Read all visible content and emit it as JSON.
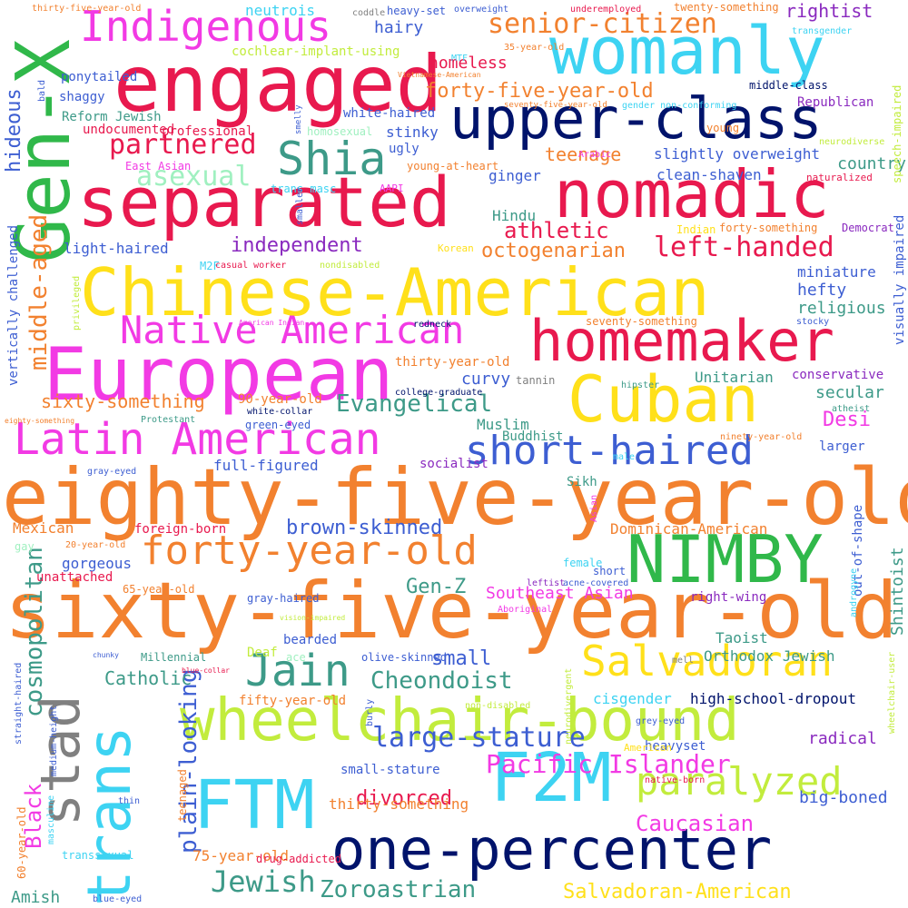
{
  "words": [
    {
      "text": "eighty-five-year-old",
      "color": "#f2812f"
    },
    {
      "text": "sixty-five-year-old",
      "color": "#f2812f"
    },
    {
      "text": "Chinese-American",
      "color": "#ffe01a"
    },
    {
      "text": "wheelchair-bound",
      "color": "#c2ec3d"
    },
    {
      "text": "one-percenter",
      "color": "#00136b"
    },
    {
      "text": "upper-class",
      "color": "#00136b"
    },
    {
      "text": "engaged",
      "color": "#e8194e"
    },
    {
      "text": "separated",
      "color": "#e8194e"
    },
    {
      "text": "nomadic",
      "color": "#e8194e"
    },
    {
      "text": "homemaker",
      "color": "#e8194e"
    },
    {
      "text": "European",
      "color": "#f23ae4"
    },
    {
      "text": "womanly",
      "color": "#3dd3f2"
    },
    {
      "text": "Gen-X",
      "color": "#30b84a"
    },
    {
      "text": "Cuban",
      "color": "#ffe01a"
    },
    {
      "text": "NIMBY",
      "color": "#30b84a"
    },
    {
      "text": "F2M",
      "color": "#3dd3f2"
    },
    {
      "text": "FTM",
      "color": "#3dd3f2"
    },
    {
      "text": "trans",
      "color": "#3dd3f2"
    },
    {
      "text": "stad",
      "color": "#808080"
    },
    {
      "text": "Indigenous",
      "color": "#f23ae4"
    },
    {
      "text": "Latin American",
      "color": "#f23ae4"
    },
    {
      "text": "Native American",
      "color": "#f23ae4"
    },
    {
      "text": "short-haired",
      "color": "#3d5ed2"
    },
    {
      "text": "forty-year-old",
      "color": "#f2812f"
    },
    {
      "text": "Salvadoran",
      "color": "#ffe01a"
    },
    {
      "text": "paralyzed",
      "color": "#c2ec3d"
    },
    {
      "text": "Jain",
      "color": "#3d9a88"
    },
    {
      "text": "Shia",
      "color": "#3d9a88"
    },
    {
      "text": "large-stature",
      "color": "#3d5ed2"
    },
    {
      "text": "partnered",
      "color": "#e8194e"
    },
    {
      "text": "left-handed",
      "color": "#e8194e"
    },
    {
      "text": "asexual",
      "color": "#a0f0c0"
    },
    {
      "text": "senior-citizen",
      "color": "#f2812f"
    },
    {
      "text": "forty-five-year-old",
      "color": "#f2812f"
    },
    {
      "text": "Evangelical",
      "color": "#3d9a88"
    },
    {
      "text": "Pacific Islander",
      "color": "#f23ae4"
    },
    {
      "text": "Cheondoist",
      "color": "#3d9a88"
    },
    {
      "text": "Jewish",
      "color": "#3d9a88"
    },
    {
      "text": "Zoroastrian",
      "color": "#3d9a88"
    },
    {
      "text": "Salvadoran-American",
      "color": "#ffe01a"
    },
    {
      "text": "cosmopolitan",
      "color": "#3d9a88"
    },
    {
      "text": "middle-aged",
      "color": "#f2812f"
    },
    {
      "text": "plain-looking",
      "color": "#3d5ed2"
    },
    {
      "text": "Black",
      "color": "#f23ae4"
    },
    {
      "text": "Caucasian",
      "color": "#f23ae4"
    },
    {
      "text": "divorced",
      "color": "#e8194e"
    },
    {
      "text": "hideous",
      "color": "#3d5ed2"
    },
    {
      "text": "independent",
      "color": "#8a2abf"
    },
    {
      "text": "athletic",
      "color": "#e8194e"
    },
    {
      "text": "octogenarian",
      "color": "#f2812f"
    },
    {
      "text": "brown-skinned",
      "color": "#3d5ed2"
    },
    {
      "text": "Gen-Z",
      "color": "#3d9a88"
    },
    {
      "text": "Southeast Asian",
      "color": "#f23ae4"
    },
    {
      "text": "small",
      "color": "#3d5ed2"
    },
    {
      "text": "Catholic",
      "color": "#3d9a88"
    },
    {
      "text": "sixty-something",
      "color": "#f2812f"
    },
    {
      "text": "teenage",
      "color": "#f2812f"
    },
    {
      "text": "homeless",
      "color": "#e8194e"
    },
    {
      "text": "hairy",
      "color": "#3d5ed2"
    },
    {
      "text": "neutrois",
      "color": "#3dd3f2"
    },
    {
      "text": "rightist",
      "color": "#8a2abf"
    },
    {
      "text": "country",
      "color": "#3d9a88"
    },
    {
      "text": "hefty",
      "color": "#3d5ed2"
    },
    {
      "text": "religious",
      "color": "#3d9a88"
    },
    {
      "text": "secular",
      "color": "#3d9a88"
    },
    {
      "text": "Desi",
      "color": "#f23ae4"
    },
    {
      "text": "Unitarian",
      "color": "#3d9a88"
    },
    {
      "text": "Orthodox Jewish",
      "color": "#3d9a88"
    },
    {
      "text": "Taoist",
      "color": "#3d9a88"
    },
    {
      "text": "high-school-dropout",
      "color": "#00136b"
    },
    {
      "text": "cisgender",
      "color": "#3dd3f2"
    },
    {
      "text": "radical",
      "color": "#8a2abf"
    },
    {
      "text": "big-boned",
      "color": "#3d5ed2"
    },
    {
      "text": "Shintoist",
      "color": "#3d9a88"
    },
    {
      "text": "out-of-shape",
      "color": "#3d5ed2"
    },
    {
      "text": "full-figured",
      "color": "#3d5ed2"
    },
    {
      "text": "Hindu",
      "color": "#3d9a88"
    },
    {
      "text": "curvy",
      "color": "#3d5ed2"
    },
    {
      "text": "Muslim",
      "color": "#3d9a88"
    },
    {
      "text": "ginger",
      "color": "#3d5ed2"
    },
    {
      "text": "stinky",
      "color": "#3d5ed2"
    },
    {
      "text": "visually impaired",
      "color": "#3d5ed2"
    },
    {
      "text": "vertically challenged",
      "color": "#3d5ed2"
    },
    {
      "text": "miniature",
      "color": "#3d5ed2"
    },
    {
      "text": "thirty-something",
      "color": "#f2812f"
    },
    {
      "text": "75-year-old",
      "color": "#f2812f"
    },
    {
      "text": "Amish",
      "color": "#3d9a88"
    },
    {
      "text": "Dominican-American",
      "color": "#f2812f"
    },
    {
      "text": "Mexican",
      "color": "#f2812f"
    },
    {
      "text": "gorgeous",
      "color": "#3d5ed2"
    },
    {
      "text": "unattached",
      "color": "#e8194e"
    },
    {
      "text": "clean-shaven",
      "color": "#3d5ed2"
    },
    {
      "text": "slightly overweight",
      "color": "#3d5ed2"
    },
    {
      "text": "light-haired",
      "color": "#3d5ed2"
    },
    {
      "text": "thirty-year-old",
      "color": "#f2812f"
    },
    {
      "text": "90-year-old",
      "color": "#f2812f"
    },
    {
      "text": "conservative",
      "color": "#8a2abf"
    },
    {
      "text": "foreign-born",
      "color": "#e8194e"
    },
    {
      "text": "larger",
      "color": "#3d5ed2"
    },
    {
      "text": "small-stature",
      "color": "#3d5ed2"
    },
    {
      "text": "heavyset",
      "color": "#3d5ed2"
    },
    {
      "text": "bearded",
      "color": "#3d5ed2"
    },
    {
      "text": "right-wing",
      "color": "#8a2abf"
    },
    {
      "text": "Deaf",
      "color": "#c2ec3d"
    },
    {
      "text": "Sikh",
      "color": "#3d9a88"
    },
    {
      "text": "fifty-year-old",
      "color": "#f2812f"
    },
    {
      "text": "Buddhist",
      "color": "#3d9a88"
    },
    {
      "text": "socialist",
      "color": "#8a2abf"
    },
    {
      "text": "shaggy",
      "color": "#3d5ed2"
    },
    {
      "text": "Reform Jewish",
      "color": "#3d9a88"
    },
    {
      "text": "professional",
      "color": "#e8194e"
    },
    {
      "text": "undocumented",
      "color": "#e8194e"
    },
    {
      "text": "ponytailed",
      "color": "#3d5ed2"
    },
    {
      "text": "homosexual",
      "color": "#a0f0c0"
    },
    {
      "text": "white-haired",
      "color": "#3d5ed2"
    },
    {
      "text": "ugly",
      "color": "#3d5ed2"
    },
    {
      "text": "cochlear-implant-using",
      "color": "#c2ec3d"
    },
    {
      "text": "Republican",
      "color": "#8a2abf"
    },
    {
      "text": "young",
      "color": "#f2812f"
    },
    {
      "text": "middle-class",
      "color": "#00136b"
    },
    {
      "text": "East Asian",
      "color": "#f23ae4"
    },
    {
      "text": "trans masc",
      "color": "#3dd3f2"
    },
    {
      "text": "AAPI",
      "color": "#f23ae4"
    },
    {
      "text": "young-at-heart",
      "color": "#f2812f"
    },
    {
      "text": "naturalized",
      "color": "#e8194e"
    },
    {
      "text": "Democrat",
      "color": "#8a2abf"
    },
    {
      "text": "forty-something",
      "color": "#f2812f"
    },
    {
      "text": "Indian",
      "color": "#ffe01a"
    },
    {
      "text": "Korean",
      "color": "#ffe01a"
    },
    {
      "text": "M2F",
      "color": "#3dd3f2"
    },
    {
      "text": "casual worker",
      "color": "#e8194e"
    },
    {
      "text": "nondisabled",
      "color": "#c2ec3d"
    },
    {
      "text": "privileged",
      "color": "#c2ec3d"
    },
    {
      "text": "redneck",
      "color": "#00136b"
    },
    {
      "text": "seventy-something",
      "color": "#f2812f"
    },
    {
      "text": "stocky",
      "color": "#3d5ed2"
    },
    {
      "text": "tannin",
      "color": "#808080"
    },
    {
      "text": "college-graduate",
      "color": "#00136b"
    },
    {
      "text": "white-collar",
      "color": "#00136b"
    },
    {
      "text": "green-eyed",
      "color": "#3d5ed2"
    },
    {
      "text": "Protestant",
      "color": "#3d9a88"
    },
    {
      "text": "atheist",
      "color": "#3d9a88"
    },
    {
      "text": "hipster",
      "color": "#3d9a88"
    },
    {
      "text": "ninety-year-old",
      "color": "#f2812f"
    },
    {
      "text": "gray-eyed",
      "color": "#3d5ed2"
    },
    {
      "text": "male",
      "color": "#3dd3f2"
    },
    {
      "text": "gay",
      "color": "#a0f0c0"
    },
    {
      "text": "20-year-old",
      "color": "#f2812f"
    },
    {
      "text": "female",
      "color": "#3dd3f2"
    },
    {
      "text": "short",
      "color": "#3d5ed2"
    },
    {
      "text": "65-year-old",
      "color": "#f2812f"
    },
    {
      "text": "leftist",
      "color": "#8a2abf"
    },
    {
      "text": "acne-covered",
      "color": "#3d5ed2"
    },
    {
      "text": "gray-haired",
      "color": "#3d5ed2"
    },
    {
      "text": "vision-impaired",
      "color": "#c2ec3d"
    },
    {
      "text": "Aboriginal",
      "color": "#f23ae4"
    },
    {
      "text": "chunky",
      "color": "#3d5ed2"
    },
    {
      "text": "Millennial",
      "color": "#3d9a88"
    },
    {
      "text": "ace",
      "color": "#a0f0c0"
    },
    {
      "text": "olive-skinned",
      "color": "#3d5ed2"
    },
    {
      "text": "mell",
      "color": "#808080"
    },
    {
      "text": "blue-collar",
      "color": "#e8194e"
    },
    {
      "text": "non-disabled",
      "color": "#c2ec3d"
    },
    {
      "text": "grey-eyed",
      "color": "#3d5ed2"
    },
    {
      "text": "American",
      "color": "#ffe01a"
    },
    {
      "text": "native-born",
      "color": "#e8194e"
    },
    {
      "text": "transsexual",
      "color": "#3dd3f2"
    },
    {
      "text": "drug-addicted",
      "color": "#e8194e"
    },
    {
      "text": "blue-eyed",
      "color": "#3d5ed2"
    },
    {
      "text": "thin",
      "color": "#3d5ed2"
    },
    {
      "text": "masculine",
      "color": "#3dd3f2"
    },
    {
      "text": "teenaged",
      "color": "#f2812f"
    },
    {
      "text": "60-year-old",
      "color": "#f2812f"
    },
    {
      "text": "straight-haired",
      "color": "#3d5ed2"
    },
    {
      "text": "medium-height",
      "color": "#3d5ed2"
    },
    {
      "text": "burly",
      "color": "#3d5ed2"
    },
    {
      "text": "neurodivergent",
      "color": "#c2ec3d"
    },
    {
      "text": "androgyne",
      "color": "#3dd3f2"
    },
    {
      "text": "wheelchair-user",
      "color": "#c2ec3d"
    },
    {
      "text": "speech-impaired",
      "color": "#c2ec3d"
    },
    {
      "text": "neurodiverse",
      "color": "#c2ec3d"
    },
    {
      "text": "smaller",
      "color": "#3d5ed2"
    },
    {
      "text": "Asian",
      "color": "#f23ae4"
    },
    {
      "text": "twenty-something",
      "color": "#f2812f"
    },
    {
      "text": "heavy-set",
      "color": "#3d5ed2"
    },
    {
      "text": "coddle",
      "color": "#808080"
    },
    {
      "text": "overweight",
      "color": "#3d5ed2"
    },
    {
      "text": "underemployed",
      "color": "#e8194e"
    },
    {
      "text": "transgender",
      "color": "#3dd3f2"
    },
    {
      "text": "thirty-five-year-old",
      "color": "#f2812f"
    },
    {
      "text": "bald",
      "color": "#3d5ed2"
    },
    {
      "text": "35-year-old",
      "color": "#f2812f"
    },
    {
      "text": "MTF",
      "color": "#3dd3f2"
    },
    {
      "text": "Vietnamese-American",
      "color": "#f2812f"
    },
    {
      "text": "seventy-five-year-old",
      "color": "#f2812f"
    },
    {
      "text": "gender non-conforming",
      "color": "#3dd3f2"
    },
    {
      "text": "smelly",
      "color": "#3d5ed2"
    },
    {
      "text": "Arabic",
      "color": "#f23ae4"
    },
    {
      "text": "eighty-something",
      "color": "#f2812f"
    },
    {
      "text": "American Indian",
      "color": "#f23ae4"
    }
  ]
}
